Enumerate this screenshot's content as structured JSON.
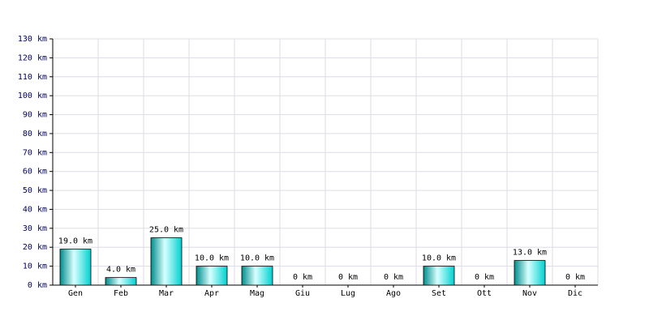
{
  "chart_data": {
    "type": "bar",
    "categories": [
      "Gen",
      "Feb",
      "Mar",
      "Apr",
      "Mag",
      "Giu",
      "Lug",
      "Ago",
      "Set",
      "Ott",
      "Nov",
      "Dic"
    ],
    "values": [
      19,
      4,
      25,
      10,
      10,
      0,
      0,
      0,
      10,
      0,
      13,
      0
    ],
    "value_labels": [
      "19.0 km",
      "4.0 km",
      "25.0 km",
      "10.0 km",
      "10.0 km",
      "0 km",
      "0 km",
      "0 km",
      "10.0 km",
      "0 km",
      "13.0 km",
      "0 km"
    ],
    "color": "#00d0d0",
    "ylim": [
      0,
      130
    ],
    "yticks": [
      {
        "value": 0,
        "label": "0 km"
      },
      {
        "value": 10,
        "label": "10 km"
      },
      {
        "value": 20,
        "label": "20 km"
      },
      {
        "value": 30,
        "label": "30 km"
      },
      {
        "value": 40,
        "label": "40 km"
      },
      {
        "value": 50,
        "label": "50 km"
      },
      {
        "value": 60,
        "label": "60 km"
      },
      {
        "value": 70,
        "label": "70 km"
      },
      {
        "value": 80,
        "label": "80 km"
      },
      {
        "value": 90,
        "label": "90 km"
      },
      {
        "value": 100,
        "label": "100 km"
      },
      {
        "value": 110,
        "label": "110 km"
      },
      {
        "value": 120,
        "label": "120 km"
      },
      {
        "value": 130,
        "label": "130 km"
      }
    ],
    "grid": true
  }
}
